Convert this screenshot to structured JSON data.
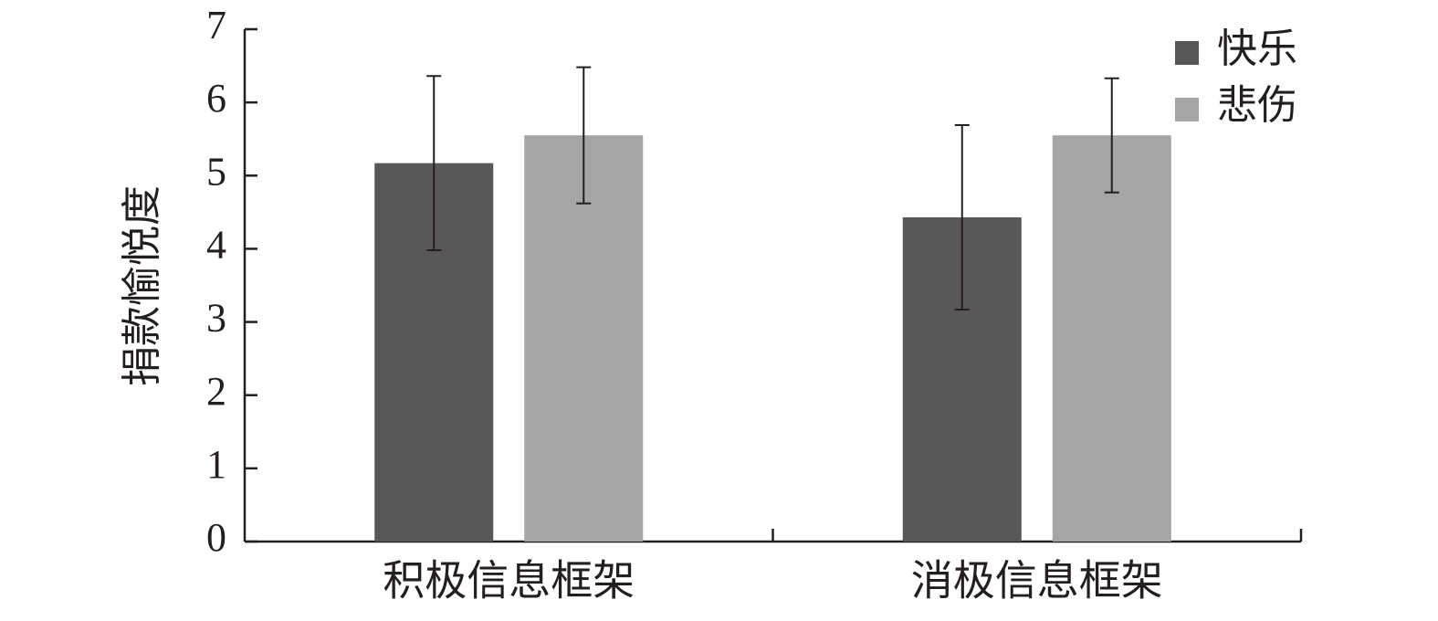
{
  "chart_data": {
    "type": "bar",
    "y_label": "捐款愉悦度",
    "categories": [
      "积极信息框架",
      "消极信息框架"
    ],
    "series": [
      {
        "name": "快乐",
        "color": "#595758",
        "values": [
          5.17,
          4.43
        ],
        "errors": [
          1.19,
          1.26
        ]
      },
      {
        "name": "悲伤",
        "color": "#a5a5a5",
        "values": [
          5.55,
          5.55
        ],
        "errors": [
          0.93,
          0.78
        ]
      }
    ],
    "ylim": [
      0,
      7
    ],
    "yticks": [
      0,
      1,
      2,
      3,
      4,
      5,
      6,
      7
    ],
    "grid": false,
    "legend": "top-right"
  }
}
